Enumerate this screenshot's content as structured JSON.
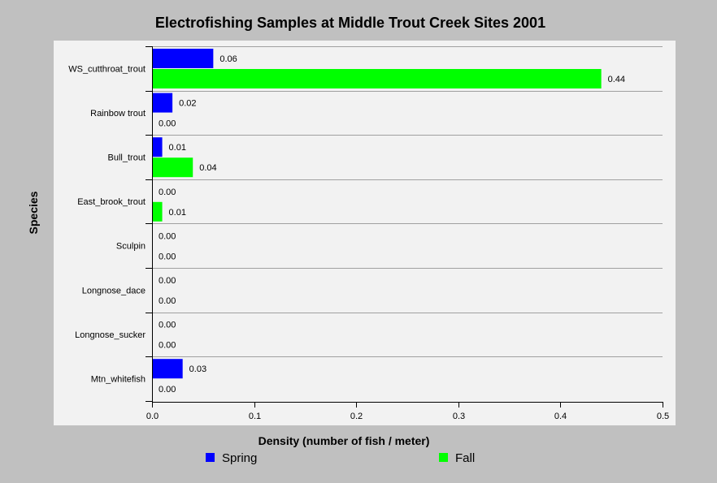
{
  "chart_data": {
    "type": "bar",
    "orientation": "horizontal",
    "title": "Electrofishing Samples at Middle Trout Creek Sites 2001",
    "xlabel": "Density (number of fish / meter)",
    "ylabel": "Species",
    "xlim": [
      0,
      0.5
    ],
    "xticks": [
      "0.0",
      "0.1",
      "0.2",
      "0.3",
      "0.4",
      "0.5"
    ],
    "grid": "horizontal",
    "legend_position": "bottom",
    "categories": [
      "WS_cutthroat_trout",
      "Rainbow trout",
      "Bull_trout",
      "East_brook_trout",
      "Sculpin",
      "Longnose_dace",
      "Longnose_sucker",
      "Mtn_whitefish"
    ],
    "series": [
      {
        "name": "Spring",
        "color": "#0000ff",
        "values": [
          0.06,
          0.02,
          0.01,
          0.0,
          0.0,
          0.0,
          0.0,
          0.03
        ]
      },
      {
        "name": "Fall",
        "color": "#00ff00",
        "values": [
          0.44,
          0.0,
          0.04,
          0.01,
          0.0,
          0.0,
          0.0,
          0.0
        ]
      }
    ]
  }
}
